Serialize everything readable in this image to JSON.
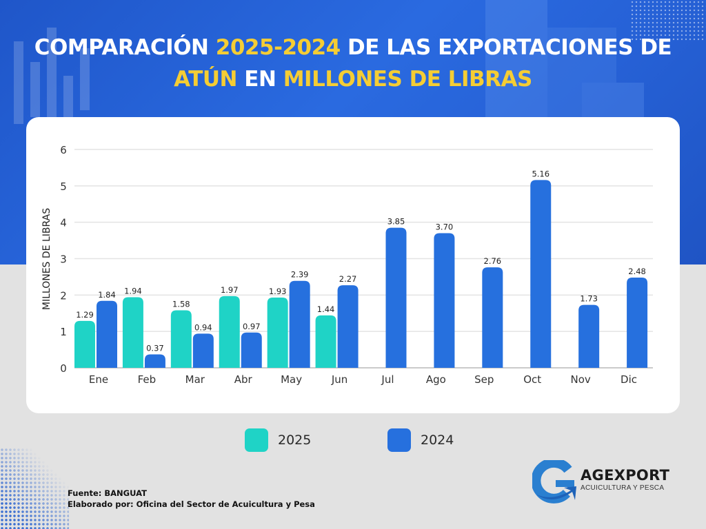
{
  "header": {
    "title_parts": [
      {
        "text": "COMPARACIÓN ",
        "highlight": false
      },
      {
        "text": "2025-2024",
        "highlight": true
      },
      {
        "text": " DE LAS EXPORTACIONES DE",
        "highlight": false
      },
      {
        "text": "ATÚN",
        "highlight": true,
        "newline": true
      },
      {
        "text": " EN ",
        "highlight": false
      },
      {
        "text": "MILLONES DE LIBRAS",
        "highlight": true
      }
    ]
  },
  "colors": {
    "series_2025": "#1fd3c6",
    "series_2024": "#2670de",
    "highlight_text": "#f5cd34",
    "grid": "#e3e3e3",
    "axis": "#b8b8b8"
  },
  "chart_data": {
    "type": "bar",
    "title": "COMPARACIÓN 2025-2024 DE LAS EXPORTACIONES DE ATÚN EN MILLONES DE LIBRAS",
    "xlabel": "",
    "ylabel": "MILLONES DE LIBRAS",
    "ylim": [
      0,
      6
    ],
    "yticks": [
      "0",
      "1",
      "2",
      "3",
      "4",
      "5",
      "6"
    ],
    "grid": true,
    "legend_position": "bottom",
    "categories": [
      "Ene",
      "Feb",
      "Mar",
      "Abr",
      "May",
      "Jun",
      "Jul",
      "Ago",
      "Sep",
      "Oct",
      "Nov",
      "Dic"
    ],
    "series": [
      {
        "name": "2025",
        "color": "#1fd3c6",
        "values": [
          1.29,
          1.94,
          1.58,
          1.97,
          1.93,
          1.44,
          null,
          null,
          null,
          null,
          null,
          null
        ],
        "labels": [
          "1.29",
          "1.94",
          "1.58",
          "1.97",
          "1.93",
          "1.44",
          "",
          "",
          "",
          "",
          "",
          ""
        ]
      },
      {
        "name": "2024",
        "color": "#2670de",
        "values": [
          1.84,
          0.37,
          0.94,
          0.97,
          2.39,
          2.27,
          3.85,
          3.7,
          2.76,
          5.16,
          1.73,
          2.48
        ],
        "labels": [
          "1.84",
          "0.37",
          "0.94",
          "0.97",
          "2.39",
          "2.27",
          "3.85",
          "3.70",
          "2.76",
          "5.16",
          "1.73",
          "2.48"
        ]
      }
    ]
  },
  "legend": [
    {
      "label": "2025",
      "color": "#1fd3c6"
    },
    {
      "label": "2024",
      "color": "#2670de"
    }
  ],
  "footer": {
    "source": "Fuente:  BANGUAT",
    "author": "Elaborado por:  Oficina del Sector de Acuicultura y Pesa"
  },
  "logo": {
    "name": "AGEXPORT",
    "subtitle": "ACUICULTURA Y PESCA"
  }
}
